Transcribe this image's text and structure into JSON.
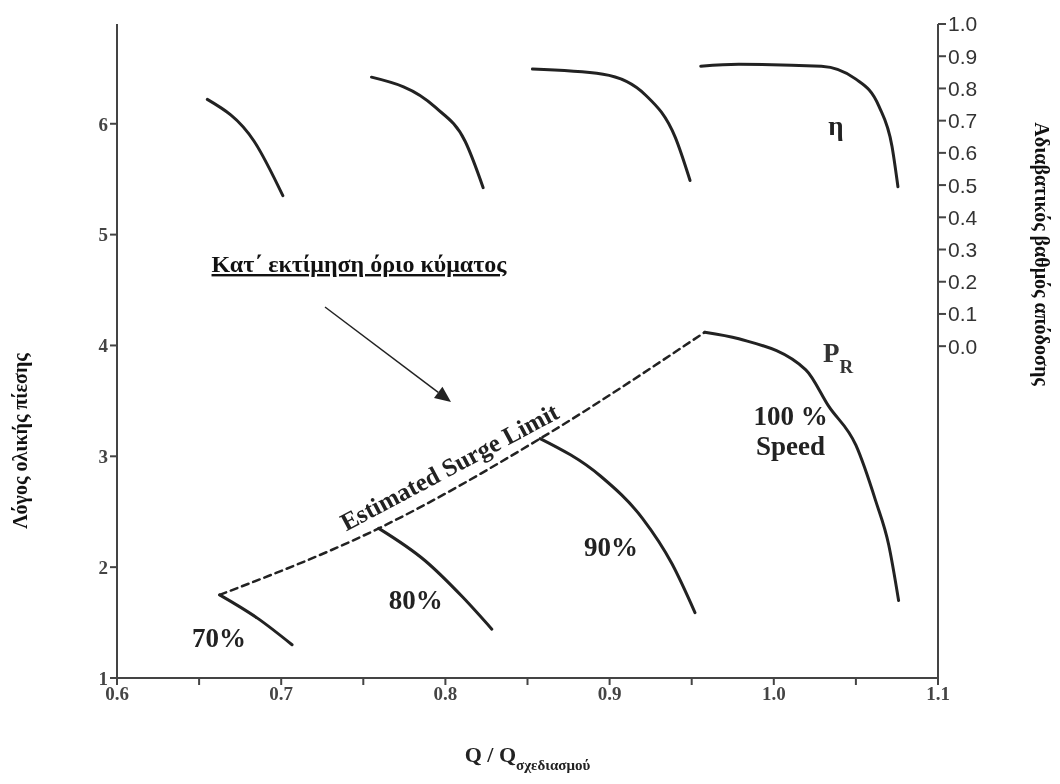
{
  "chart_data": {
    "type": "line",
    "xlabel": "Q / Q$_{σχεδιασμού}$",
    "ylabel": "Λόγος ολικής πίεσης",
    "y2label": "Αδιαβατικός βαθμός απόδοσης",
    "xlim": [
      0.6,
      1.1
    ],
    "xticks": [
      0.6,
      {
        "value": 0.65,
        "label": null
      },
      0.7,
      {
        "value": 0.75,
        "label": null
      },
      0.8,
      {
        "value": 0.85,
        "label": null
      },
      0.9,
      {
        "value": 0.95,
        "label": null
      },
      {
        "value": 1.0,
        "label": "1.0"
      },
      {
        "value": 1.05,
        "label": null
      },
      1.1
    ],
    "ylim": [
      1,
      6.9
    ],
    "yticks": [
      1,
      2,
      3,
      4,
      5,
      6
    ],
    "y2lim": [
      -1.03,
      1.0
    ],
    "y2ticks": [
      {
        "value": 0,
        "label": "0.0"
      },
      0.1,
      0.2,
      0.3,
      0.4,
      0.5,
      0.6,
      0.7,
      0.8,
      0.9,
      {
        "value": 1,
        "label": "1.0"
      }
    ],
    "marker": "none",
    "grid": false,
    "series": [
      {
        "name": "Estimated Surge Limit",
        "color": "#222222",
        "line_style": "dashed",
        "x": [
          0.6625,
          0.7594,
          0.8577,
          0.958
        ],
        "values": [
          1.75,
          2.35,
          3.16,
          4.12
        ]
      },
      {
        "name": "70%",
        "color": "#222222",
        "x": [
          0.6625,
          0.6855,
          0.7066
        ],
        "values": [
          1.75,
          1.54,
          1.3
        ]
      },
      {
        "name": "80%",
        "color": "#222222",
        "x": [
          0.7594,
          0.7875,
          0.8105,
          0.8283
        ],
        "values": [
          2.35,
          2.06,
          1.73,
          1.44
        ]
      },
      {
        "name": "90%",
        "color": "#222222",
        "x": [
          0.8577,
          0.8946,
          0.92,
          0.938,
          0.952
        ],
        "values": [
          3.16,
          2.82,
          2.44,
          2.03,
          1.59
        ]
      },
      {
        "name": "100 %\nSpeed",
        "color": "#222222",
        "x": [
          0.958,
          0.9787,
          1.0195,
          1.0335,
          1.05,
          1.062,
          1.07,
          1.076
        ],
        "values": [
          4.12,
          4.06,
          3.78,
          3.45,
          3.1,
          2.6,
          2.2,
          1.7
        ]
      },
      {
        "color": "#222222",
        "axis": "y2",
        "x": [
          0.655,
          0.6835,
          0.701
        ],
        "values": [
          0.766,
          0.636,
          0.467
        ]
      },
      {
        "color": "#222222",
        "axis": "y2",
        "x": [
          0.755,
          0.794,
          0.812,
          0.823
        ],
        "values": [
          0.835,
          0.741,
          0.636,
          0.492
        ]
      },
      {
        "color": "#222222",
        "axis": "y2",
        "x": [
          0.853,
          0.896,
          0.922,
          0.94,
          0.949
        ],
        "values": [
          0.86,
          0.844,
          0.779,
          0.648,
          0.514
        ]
      },
      {
        "name": "η",
        "color": "#222222",
        "axis": "y2",
        "x": [
          0.9555,
          0.9787,
          1.029,
          1.05,
          1.064,
          1.072,
          1.0756
        ],
        "values": [
          0.869,
          0.875,
          0.869,
          0.829,
          0.745,
          0.62,
          0.495
        ]
      }
    ],
    "annotations": [
      "Κατ΄ εκτίμηση όριο κύματος",
      "P$_{R}$"
    ]
  }
}
